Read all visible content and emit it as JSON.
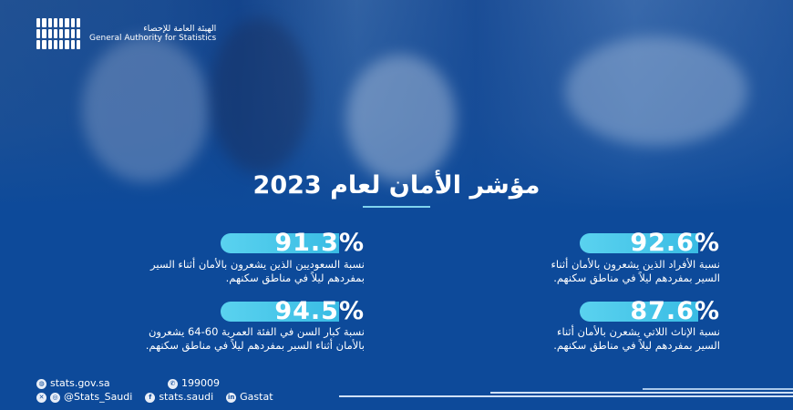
{
  "logo": {
    "arabic": "الهيئة العامة للإحصاء",
    "english": "General Authority for Statistics"
  },
  "title": "مؤشر الأمان لعام 2023",
  "stats": [
    {
      "value": "92.6%",
      "line1": "نسبة الأفراد الذين يشعرون بالأمان أثناء",
      "line2": "السير بمفردهم ليلاً في مناطق سكنهم."
    },
    {
      "value": "91.3%",
      "line1": "نسبة السعوديين الذين يشعرون بالأمان أثناء السير",
      "line2": "بمفردهم ليلاً في مناطق سكنهم."
    },
    {
      "value": "87.6%",
      "line1": "نسبة الإناث اللاتي يشعرن بالأمان أثناء",
      "line2": "السير بمفردهم ليلاً في مناطق سكنهم."
    },
    {
      "value": "94.5%",
      "line1": "نسبة كبار السن في الفئة العمرية 60-64 يشعرون",
      "line2": "بالأمان أثناء السير بمفردهم ليلاً في مناطق سكنهم."
    }
  ],
  "footer": {
    "website": "stats.gov.sa",
    "phone": "199009",
    "social": "@Stats_Saudi",
    "facebook": "stats.saudi",
    "linkedin": "Gastat"
  },
  "colors": {
    "background": "#0d4a9a",
    "pill": "#4fcbeb"
  }
}
